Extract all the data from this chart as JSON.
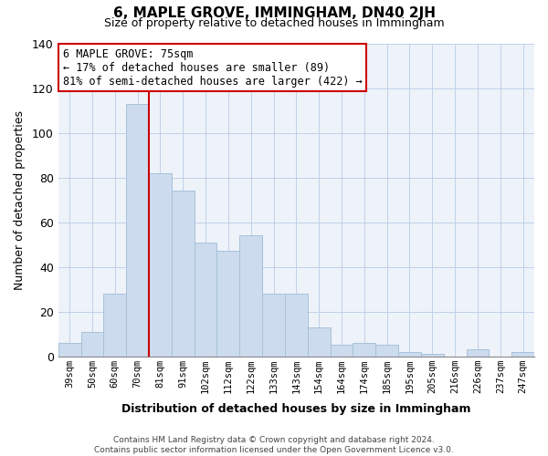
{
  "title": "6, MAPLE GROVE, IMMINGHAM, DN40 2JH",
  "subtitle": "Size of property relative to detached houses in Immingham",
  "xlabel": "Distribution of detached houses by size in Immingham",
  "ylabel": "Number of detached properties",
  "categories": [
    "39sqm",
    "50sqm",
    "60sqm",
    "70sqm",
    "81sqm",
    "91sqm",
    "102sqm",
    "112sqm",
    "122sqm",
    "133sqm",
    "143sqm",
    "154sqm",
    "164sqm",
    "174sqm",
    "185sqm",
    "195sqm",
    "205sqm",
    "216sqm",
    "226sqm",
    "237sqm",
    "247sqm"
  ],
  "values": [
    6,
    11,
    28,
    113,
    82,
    74,
    51,
    47,
    54,
    28,
    28,
    13,
    5,
    6,
    5,
    2,
    1,
    0,
    3,
    0,
    2
  ],
  "bar_color": "#ccdcee",
  "bar_edge_color": "#a8c0d8",
  "marker_line_color": "#cc0000",
  "annotation_text": "6 MAPLE GROVE: 75sqm\n← 17% of detached houses are smaller (89)\n81% of semi-detached houses are larger (422) →",
  "annotation_box_edgecolor": "#cc0000",
  "ylim": [
    0,
    140
  ],
  "yticks": [
    0,
    20,
    40,
    60,
    80,
    100,
    120,
    140
  ],
  "footer_text": "Contains HM Land Registry data © Crown copyright and database right 2024.\nContains public sector information licensed under the Open Government Licence v3.0.",
  "grid_color": "#c0d0e8",
  "background_color": "#eef3fa"
}
